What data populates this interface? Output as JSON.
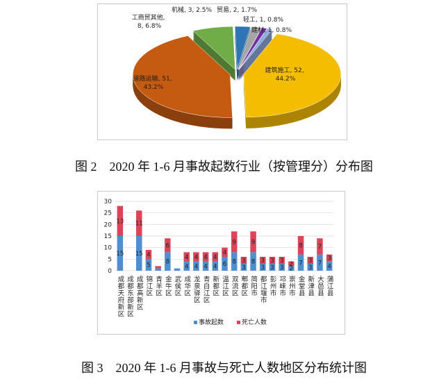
{
  "chart_data": [
    {
      "type": "pie",
      "categories": [
        "建筑施工",
        "道路运输",
        "工商贸其他",
        "机械",
        "贸易",
        "轻工",
        "建材"
      ],
      "values": [
        52,
        51,
        8,
        3,
        2,
        1,
        1
      ],
      "percent_labels": [
        "44.2%",
        "43.2%",
        "6.8%",
        "2.5%",
        "1.7%",
        "0.8%",
        "0.8%"
      ],
      "label_separator": ", ",
      "colors": [
        "#f5bd00",
        "#c55a11",
        "#70ad47",
        "#2e75b6",
        "#a5a5a5",
        "#7030a0",
        "#8faadc"
      ],
      "caption": "图 2　2020 年 1-6 月事故起数行业（按管理分）分布图"
    },
    {
      "type": "stacked_bar",
      "categories": [
        "成都天府新区",
        "成都东部新区",
        "成都高新区",
        "锦江区",
        "青羊区",
        "金牛区",
        "武侯区",
        "成华区",
        "龙泉驿区",
        "青白江区",
        "新都区",
        "温江区",
        "双流区",
        "郫都区",
        "简阳市",
        "都江堰市",
        "彭州市",
        "邛崃市",
        "崇州市",
        "金堂县",
        "新津县",
        "大邑县",
        "蒲江县"
      ],
      "series": [
        {
          "name": "事故起数",
          "color": "#4f8fd1",
          "values": [
            15,
            0,
            15,
            5,
            1,
            8,
            1,
            4,
            4,
            4,
            4,
            6,
            8,
            3,
            8,
            3,
            3,
            3,
            2,
            7,
            3,
            7,
            4
          ],
          "value_labels": [
            "15",
            null,
            "15",
            "5",
            null,
            "8",
            null,
            "4",
            "4",
            "4",
            "4",
            "6",
            "8",
            "3",
            "8",
            "3",
            "3",
            "3",
            "2",
            "7",
            "3",
            "7",
            "4"
          ]
        },
        {
          "name": "死亡人数",
          "color": "#d9465a",
          "values": [
            13,
            0,
            11,
            4,
            1,
            6,
            0,
            4,
            4,
            4,
            4,
            4,
            9,
            3,
            9,
            3,
            3,
            3,
            2,
            8,
            3,
            7,
            3
          ],
          "value_labels": [
            "13",
            null,
            "11",
            "4",
            null,
            "6",
            null,
            "4",
            "4",
            "4",
            "4",
            "4",
            "9",
            "3",
            "9",
            "3",
            "3",
            "3",
            "2",
            "8",
            "3",
            "7",
            "3"
          ]
        }
      ],
      "ylim": [
        0,
        30
      ],
      "yticks": [
        0,
        5,
        10,
        15,
        20,
        25,
        30
      ],
      "legend": "bottom",
      "caption": "图 3　2020 年 1-6 月事故与死亡人数地区分布统计图"
    }
  ]
}
